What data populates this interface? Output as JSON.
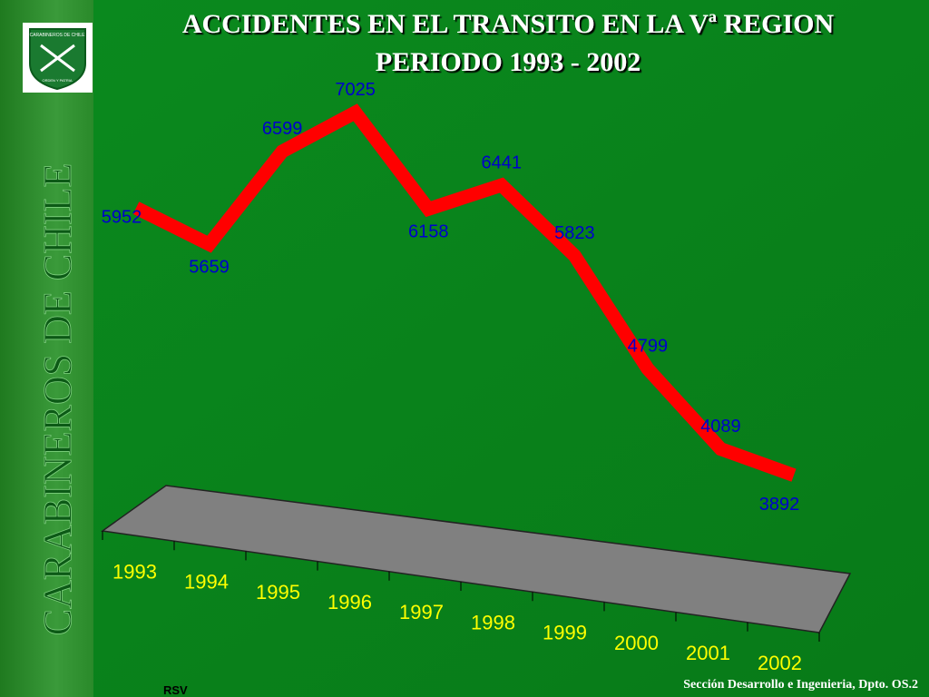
{
  "chart_data": {
    "type": "line",
    "title": [
      "ACCIDENTES EN EL TRANSITO EN LA Vª REGION",
      "PERIODO 1993 - 2002"
    ],
    "categories": [
      "1993",
      "1994",
      "1995",
      "1996",
      "1997",
      "1998",
      "1999",
      "2000",
      "2001",
      "2002"
    ],
    "values": [
      5952,
      5659,
      6599,
      7025,
      6158,
      6441,
      5823,
      4799,
      4089,
      3892
    ],
    "color": "#ff0000"
  },
  "slide": {
    "side_text": "CARABINEROS DE CHILE",
    "logo": {
      "top": "CARABINEROS DE CHILE",
      "bottom": "ORDEN Y PATRIA"
    },
    "footer": "Sección Desarrollo e Ingenieria, Dpto. OS.2",
    "author": "RSV"
  }
}
